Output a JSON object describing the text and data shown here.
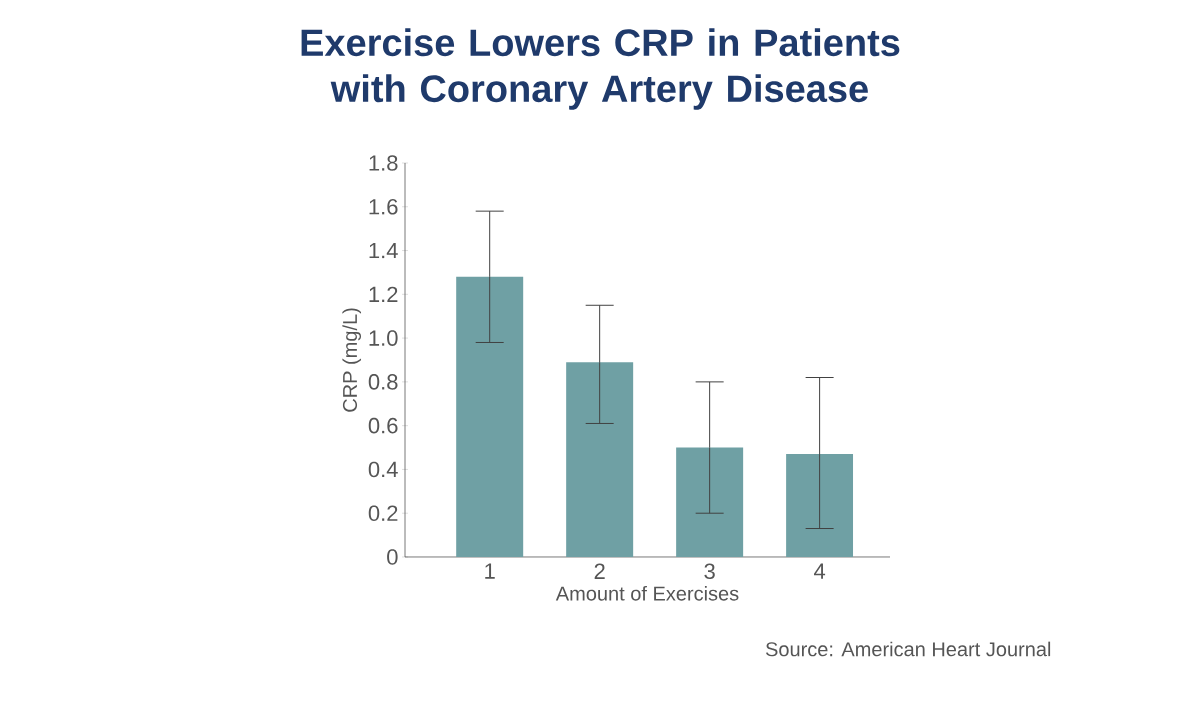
{
  "chart_data": {
    "type": "bar",
    "title": "Exercise Lowers CRP in Patients with Coronary Artery Disease",
    "xlabel": "Amount of Exercises",
    "ylabel": "CRP (mg/L)",
    "categories": [
      "1",
      "2",
      "3",
      "4"
    ],
    "values": [
      1.28,
      0.89,
      0.5,
      0.47
    ],
    "errors": [
      [
        0.98,
        1.58
      ],
      [
        0.61,
        1.15
      ],
      [
        0.2,
        0.8
      ],
      [
        0.13,
        0.82
      ]
    ],
    "color": "#6fa0a4",
    "ylim": [
      0,
      1.8
    ],
    "yticks": [
      {
        "value": 0,
        "label": "0"
      },
      {
        "value": 0.2,
        "label": "0.2"
      },
      {
        "value": 0.4,
        "label": "0.4"
      },
      {
        "value": 0.6,
        "label": "0.6"
      },
      {
        "value": 0.8,
        "label": "0.8"
      },
      {
        "value": 1.0,
        "label": "1.0"
      },
      {
        "value": 1.2,
        "label": "1.2"
      },
      {
        "value": 1.4,
        "label": "1.4"
      },
      {
        "value": 1.6,
        "label": "1.6"
      },
      {
        "value": 1.8,
        "label": "1.8"
      }
    ],
    "annotations": [
      "Source: American Heart Journal"
    ]
  }
}
